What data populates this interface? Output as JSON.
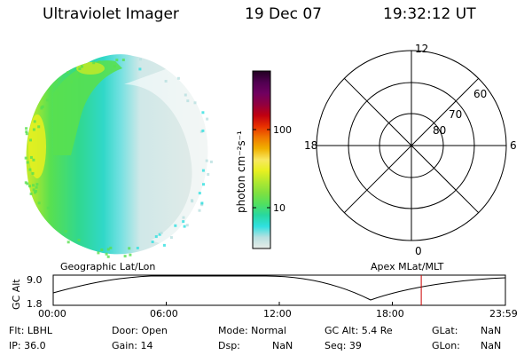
{
  "header": {
    "instrument": "Ultraviolet Imager",
    "date": "19 Dec 07",
    "time": "19:32:12 UT"
  },
  "colorbar": {
    "unit_label": "photon cm⁻²s⁻¹",
    "ticks": [
      "100",
      "10"
    ],
    "scale": "log"
  },
  "polar_plot": {
    "mlt_labels": {
      "top": "12",
      "left": "18",
      "right": "6",
      "bottom": "0"
    },
    "lat_labels": [
      "60",
      "70",
      "80"
    ]
  },
  "timeline": {
    "left_header": "Geographic Lat/Lon",
    "right_header": "Apex MLat/MLT",
    "ylabel": "GC Alt",
    "yticks": [
      "9.0",
      "1.8"
    ],
    "xticks": [
      "00:00",
      "06:00",
      "12:00",
      "18:00",
      "23:59"
    ],
    "current_time_hours": 19.536,
    "marker_color": "#cc0000"
  },
  "status": {
    "flt": "Flt: LBHL",
    "door": "Door: Open",
    "mode": "Mode: Normal",
    "gc_alt": "GC Alt: 5.4 Re",
    "glat_label": "GLat:",
    "glat_value": "NaN",
    "ip": "IP: 36.0",
    "gain": "Gain: 14",
    "dsp_label": "Dsp:",
    "dsp_value": "NaN",
    "seq": "Seq: 39",
    "glon_label": "GLon:",
    "glon_value": "NaN"
  },
  "colors": {
    "colormap": [
      "#e8ece8",
      "#b8e0e0",
      "#30e0e0",
      "#28d8a0",
      "#50e060",
      "#80e040",
      "#b0e830",
      "#e8f020",
      "#f8e860",
      "#f0b000",
      "#f07800",
      "#e83000",
      "#c00010",
      "#900040",
      "#700060",
      "#500050",
      "#200020"
    ]
  }
}
